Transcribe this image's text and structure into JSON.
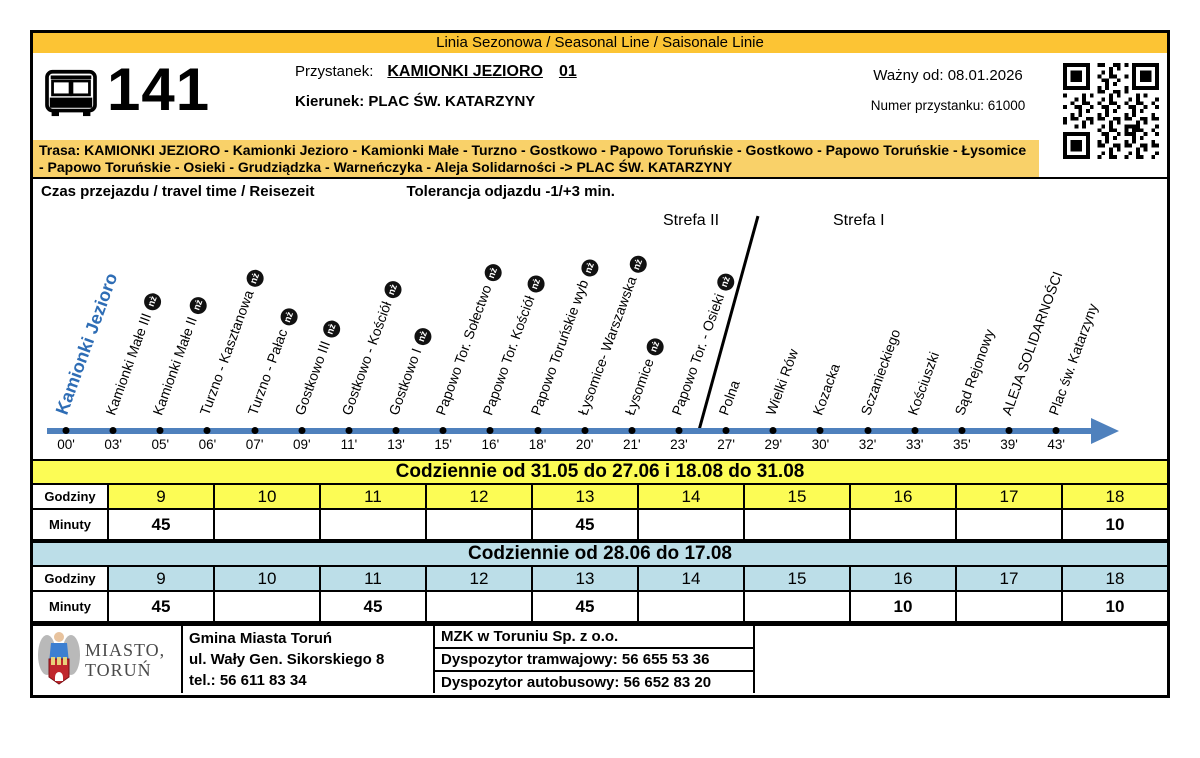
{
  "page": {
    "seasonal_line": "Linia Sezonowa / Seasonal Line / Saisonale Linie",
    "line_number": "141",
    "stop_label": "Przystanek:",
    "stop_name": "KAMIONKI JEZIORO",
    "stop_platform": "01",
    "direction_label": "Kierunek:",
    "direction": "PLAC ŚW. KATARZYNY",
    "valid_from": "Ważny od: 08.01.2026",
    "stop_number": "Numer przystanku: 61000",
    "route": "Trasa: KAMIONKI JEZIORO - Kamionki Jezioro - Kamionki Małe - Turzno - Gostkowo - Papowo Toruńskie - Gostkowo - Papowo Toruńskie - Łysomice - Papowo Toruńskie - Osieki - Grudziądzka - Warneńczyka - Aleja Solidarności -> PLAC ŚW. KATARZYNY",
    "travel_time_label": "Czas przejazdu / travel time / Reisezeit",
    "tolerance": "Tolerancja odjazdu -1/+3 min."
  },
  "diagram": {
    "zone2_label": "Strefa II",
    "zone1_label": "Strefa I",
    "request_badge": "nż",
    "stops": [
      {
        "name": "Kamionki Jezioro",
        "time": "00'",
        "nz": false
      },
      {
        "name": "Kamionki Małe III",
        "time": "03'",
        "nz": true
      },
      {
        "name": "Kamionki Małe II",
        "time": "05'",
        "nz": true
      },
      {
        "name": "Turzno - Kasztanowa",
        "time": "06'",
        "nz": true
      },
      {
        "name": "Turzno - Pałac",
        "time": "07'",
        "nz": true
      },
      {
        "name": "Gostkowo III",
        "time": "09'",
        "nz": true
      },
      {
        "name": "Gostkowo - Kościół",
        "time": "11'",
        "nz": true
      },
      {
        "name": "Gostkowo I",
        "time": "13'",
        "nz": true
      },
      {
        "name": "Papowo Tor. Sołectwo",
        "time": "15'",
        "nz": true
      },
      {
        "name": "Papowo Tor. Kościół",
        "time": "16'",
        "nz": true
      },
      {
        "name": "Papowo Toruńskie wyb",
        "time": "18'",
        "nz": true
      },
      {
        "name": "Łysomice- Warszawska",
        "time": "20'",
        "nz": true
      },
      {
        "name": "Łysomice",
        "time": "21'",
        "nz": true
      },
      {
        "name": "Papowo Tor. - Osieki",
        "time": "23'",
        "nz": true
      },
      {
        "name": "Polna",
        "time": "27'",
        "nz": false
      },
      {
        "name": "Wielki Rów",
        "time": "29'",
        "nz": false
      },
      {
        "name": "Kozacka",
        "time": "30'",
        "nz": false
      },
      {
        "name": "Sczanieckiego",
        "time": "32'",
        "nz": false
      },
      {
        "name": "Kościuszki",
        "time": "33'",
        "nz": false
      },
      {
        "name": "Sąd Rejonowy",
        "time": "35'",
        "nz": false
      },
      {
        "name": "ALEJA SOLIDARNOŚCI",
        "time": "39'",
        "nz": false
      },
      {
        "name": "Plac św. Katarzyny",
        "time": "43'",
        "nz": false
      }
    ]
  },
  "tables": [
    {
      "title": "Codziennie od 31.05 do 27.06 i 18.08 do 31.08",
      "hours_label": "Godziny",
      "minutes_label": "Minuty",
      "hours": [
        "9",
        "10",
        "11",
        "12",
        "13",
        "14",
        "15",
        "16",
        "17",
        "18"
      ],
      "minutes": [
        "45",
        "",
        "",
        "",
        "45",
        "",
        "",
        "",
        "",
        "10"
      ],
      "color": "#FCFC55"
    },
    {
      "title": "Codziennie od 28.06 do 17.08",
      "hours_label": "Godziny",
      "minutes_label": "Minuty",
      "hours": [
        "9",
        "10",
        "11",
        "12",
        "13",
        "14",
        "15",
        "16",
        "17",
        "18"
      ],
      "minutes": [
        "45",
        "",
        "45",
        "",
        "45",
        "",
        "",
        "10",
        "",
        "10"
      ],
      "color": "#BCDEE8"
    }
  ],
  "footer": {
    "city_line1": "MIASTO,",
    "city_line2": "TORUŃ",
    "gmina": [
      "Gmina Miasta Toruń",
      "ul. Wały Gen. Sikorskiego 8",
      "tel.: 56 611 83 34"
    ],
    "mzk": [
      "MZK w Toruniu Sp. z o.o.",
      "Dyspozytor tramwajowy: 56 655 53 36",
      "Dyspozytor autobusowy: 56 652 83 20"
    ]
  },
  "colors": {
    "header_yellow": "#FCC434",
    "route_yellow": "#F9D169",
    "table1_yellow": "#FCFC55",
    "table2_blue": "#BCDEE8",
    "timeline_blue": "#4F81BD",
    "origin_stop_blue": "#2E6DB5"
  }
}
